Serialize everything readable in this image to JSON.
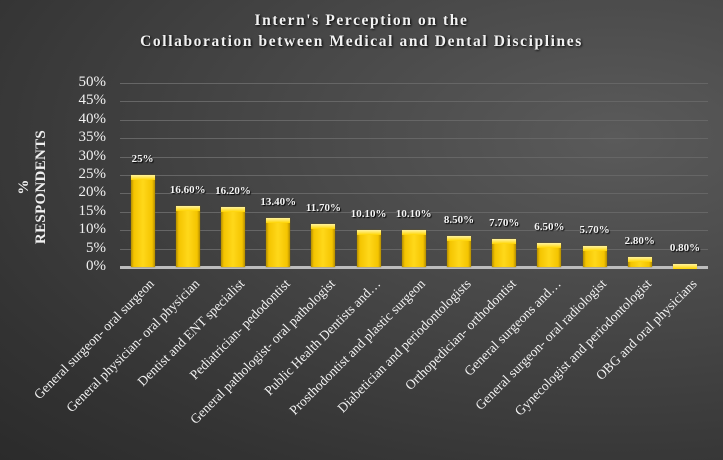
{
  "chart_data": {
    "type": "bar",
    "title": "Intern's Perception on the Collaboration between Medical and Dental Disciplines",
    "title_lines": [
      "Intern's Perception on the",
      "Collaboration between Medical and Dental Disciplines"
    ],
    "xlabel": "",
    "ylabel": "% RESPONDENTS",
    "ylim": [
      0,
      50
    ],
    "yticks": [
      "0%",
      "5%",
      "10%",
      "15%",
      "20%",
      "25%",
      "30%",
      "35%",
      "40%",
      "45%",
      "50%"
    ],
    "grid": true,
    "legend": "none",
    "categories": [
      "General surgeon- oral surgeon",
      "General physician- oral physician",
      "Dentist and ENT specialist",
      "Pediatrician- pedodontist",
      "General pathologist- oral pathologist",
      "Public Health Dentists and…",
      "Prosthodontist and plastic surgeon",
      "Diabetician and periodontologists",
      "Orthopedician- orthodontist",
      "General surgeons and…",
      "General surgeon- oral radiologist",
      "Gynecologist and periodontologist",
      "OBG and oral physicians"
    ],
    "values": [
      25,
      16.6,
      16.2,
      13.4,
      11.7,
      10.1,
      10.1,
      8.5,
      7.7,
      6.5,
      5.7,
      2.8,
      0.8
    ],
    "data_labels": [
      "25%",
      "16.60%",
      "16.20%",
      "13.40%",
      "11.70%",
      "10.10%",
      "10.10%",
      "8.50%",
      "7.70%",
      "6.50%",
      "5.70%",
      "2.80%",
      "0.80%"
    ],
    "colors": {
      "bar": "#ffd200",
      "background": "#3c3c3c",
      "text": "#ffffff"
    }
  }
}
